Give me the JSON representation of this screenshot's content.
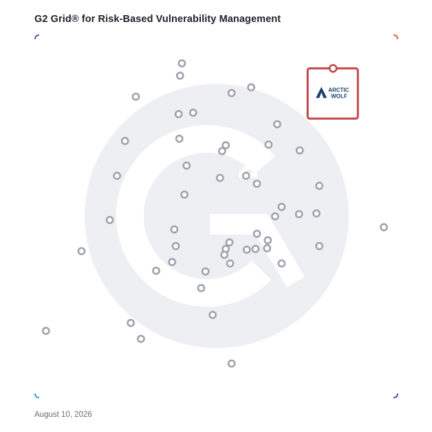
{
  "title": "G2 Grid® for Risk-Based Vulnerability Management",
  "date": "August 10, 2026",
  "colors": {
    "dot": "#9fa3ad",
    "watermark": "#eeeff2",
    "highlight": "#c0474a",
    "logo_blue": "#1c3f6e",
    "border_top_left": "#6f4fb3",
    "border_top_right": "#e8613a",
    "border_bottom_left": "#2aa5dc",
    "border_bottom_right": "#7a3fa0"
  },
  "chart_data": {
    "type": "scatter",
    "title": "G2 Grid® for Risk-Based Vulnerability Management",
    "xlabel": "",
    "ylabel": "",
    "xlim": [
      0,
      100
    ],
    "ylim": [
      0,
      100
    ],
    "grid": "quadrants",
    "points": [
      {
        "x": 40.5,
        "y": 92.2
      },
      {
        "x": 40.0,
        "y": 88.8
      },
      {
        "x": 27.8,
        "y": 83.0
      },
      {
        "x": 39.6,
        "y": 78.2
      },
      {
        "x": 43.6,
        "y": 78.6
      },
      {
        "x": 24.8,
        "y": 70.8
      },
      {
        "x": 39.8,
        "y": 71.4
      },
      {
        "x": 41.8,
        "y": 64.0
      },
      {
        "x": 22.6,
        "y": 61.2
      },
      {
        "x": 41.2,
        "y": 56.0
      },
      {
        "x": 20.6,
        "y": 49.0
      },
      {
        "x": 54.2,
        "y": 84.0
      },
      {
        "x": 59.6,
        "y": 85.6
      },
      {
        "x": 66.8,
        "y": 75.4
      },
      {
        "x": 52.6,
        "y": 69.6
      },
      {
        "x": 51.6,
        "y": 68.0
      },
      {
        "x": 64.4,
        "y": 69.8
      },
      {
        "x": 73.0,
        "y": 68.2
      },
      {
        "x": 51.0,
        "y": 60.6
      },
      {
        "x": 58.2,
        "y": 61.2
      },
      {
        "x": 61.2,
        "y": 59.0
      },
      {
        "x": 78.4,
        "y": 58.4
      },
      {
        "x": 68.0,
        "y": 52.6
      },
      {
        "x": 72.8,
        "y": 50.6
      },
      {
        "x": 66.2,
        "y": 50.0
      },
      {
        "x": 77.6,
        "y": 50.8
      },
      {
        "x": 96.2,
        "y": 47.0
      },
      {
        "x": 38.4,
        "y": 46.4
      },
      {
        "x": 38.8,
        "y": 41.8
      },
      {
        "x": 37.8,
        "y": 37.4
      },
      {
        "x": 12.8,
        "y": 40.4
      },
      {
        "x": 33.4,
        "y": 35.0
      },
      {
        "x": 47.0,
        "y": 34.8
      },
      {
        "x": 45.8,
        "y": 30.2
      },
      {
        "x": 53.6,
        "y": 42.8
      },
      {
        "x": 52.6,
        "y": 41.0
      },
      {
        "x": 52.2,
        "y": 39.4
      },
      {
        "x": 53.8,
        "y": 37.0
      },
      {
        "x": 58.4,
        "y": 40.8
      },
      {
        "x": 61.2,
        "y": 45.2
      },
      {
        "x": 60.8,
        "y": 41.0
      },
      {
        "x": 64.2,
        "y": 43.4
      },
      {
        "x": 64.0,
        "y": 41.2
      },
      {
        "x": 68.0,
        "y": 37.0
      },
      {
        "x": 78.4,
        "y": 41.8
      },
      {
        "x": 49.0,
        "y": 22.8
      },
      {
        "x": 26.4,
        "y": 20.6
      },
      {
        "x": 29.2,
        "y": 16.2
      },
      {
        "x": 3.0,
        "y": 18.4
      },
      {
        "x": 54.2,
        "y": 9.4
      }
    ],
    "highlight": {
      "x": 82.2,
      "y": 83.8,
      "label_line1": "ARCTIC",
      "label_line2": "WOLF"
    }
  }
}
